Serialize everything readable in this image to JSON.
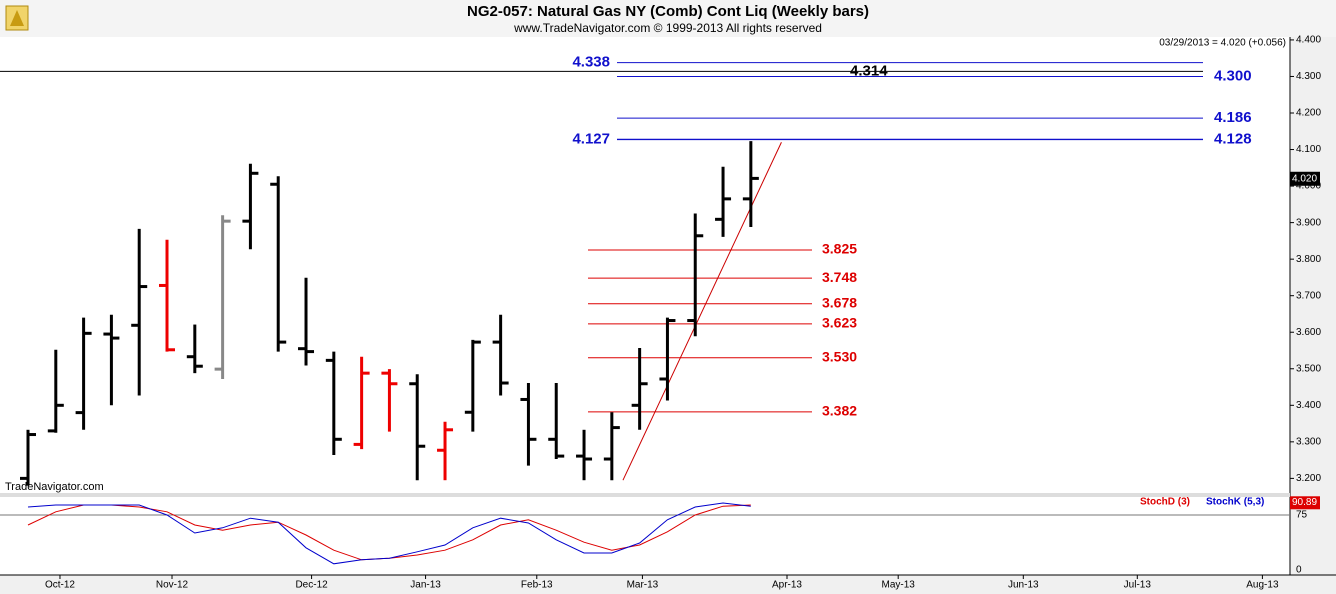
{
  "chart_data": {
    "type": "ohlc",
    "title": "NG2-057:  Natural Gas NY (Comb) Cont Liq  (Weekly bars)",
    "subtitle": "www.TradeNavigator.com © 1999-2013 All rights reserved",
    "quote": "03/29/2013 = 4.020 (+0.056)",
    "watermark": "TradeNavigator.com",
    "xlim": [
      -1,
      45.4
    ],
    "xticks": [
      {
        "value": 1.15,
        "label": "Oct-12"
      },
      {
        "value": 5.18,
        "label": "Nov-12"
      },
      {
        "value": 10.2,
        "label": "Dec-12"
      },
      {
        "value": 14.3,
        "label": "Jan-13"
      },
      {
        "value": 18.3,
        "label": "Feb-13"
      },
      {
        "value": 22.1,
        "label": "Mar-13"
      },
      {
        "value": 27.3,
        "label": "Apr-13"
      },
      {
        "value": 31.3,
        "label": "May-13"
      },
      {
        "value": 35.8,
        "label": "Jun-13"
      },
      {
        "value": 39.9,
        "label": "Jul-13"
      },
      {
        "value": 44.4,
        "label": "Aug-13"
      }
    ],
    "ylim": [
      3.16,
      4.408
    ],
    "yticks": [
      {
        "value": 3.2,
        "label": "3.200"
      },
      {
        "value": 3.3,
        "label": "3.300"
      },
      {
        "value": 3.4,
        "label": "3.400"
      },
      {
        "value": 3.5,
        "label": "3.500"
      },
      {
        "value": 3.6,
        "label": "3.600"
      },
      {
        "value": 3.7,
        "label": "3.700"
      },
      {
        "value": 3.8,
        "label": "3.800"
      },
      {
        "value": 3.9,
        "label": "3.900"
      },
      {
        "value": 4.0,
        "label": "4.000"
      },
      {
        "value": 4.1,
        "label": "4.100"
      },
      {
        "value": 4.2,
        "label": "4.200"
      },
      {
        "value": 4.3,
        "label": "4.300"
      },
      {
        "value": 4.4,
        "label": "4.400"
      }
    ],
    "open": [
      3.2,
      3.33,
      3.38,
      3.595,
      3.619,
      3.728,
      3.533,
      3.499,
      3.904,
      4.005,
      3.555,
      3.523,
      3.293,
      3.488,
      3.459,
      3.277,
      3.381,
      3.573,
      3.416,
      3.307,
      3.261,
      3.253,
      3.4,
      3.472,
      3.632,
      3.909,
      3.965
    ],
    "high": [
      3.333,
      3.552,
      3.64,
      3.648,
      3.883,
      3.853,
      3.621,
      3.92,
      4.061,
      4.027,
      3.749,
      3.547,
      3.533,
      3.499,
      3.485,
      3.355,
      3.579,
      3.648,
      3.461,
      3.461,
      3.333,
      3.381,
      3.557,
      3.64,
      3.925,
      4.053,
      4.123
    ],
    "low": [
      3.18,
      3.325,
      3.333,
      3.4,
      3.427,
      3.547,
      3.488,
      3.472,
      3.827,
      3.547,
      3.509,
      3.264,
      3.28,
      3.328,
      3.195,
      3.195,
      3.328,
      3.427,
      3.235,
      3.253,
      3.195,
      3.195,
      3.333,
      3.413,
      3.589,
      3.861,
      3.888
    ],
    "close": [
      3.32,
      3.4,
      3.597,
      3.584,
      3.725,
      3.552,
      3.507,
      3.904,
      4.035,
      3.573,
      3.547,
      3.307,
      3.488,
      3.459,
      3.288,
      3.333,
      3.573,
      3.461,
      3.307,
      3.261,
      3.253,
      3.339,
      3.459,
      3.632,
      3.864,
      3.965,
      4.021
    ],
    "colors": [
      "#000000",
      "#000000",
      "#000000",
      "#000000",
      "#000000",
      "#ee0000",
      "#000000",
      "#888888",
      "#000000",
      "#000000",
      "#000000",
      "#000000",
      "#ee0000",
      "#ee0000",
      "#000000",
      "#ee0000",
      "#000000",
      "#000000",
      "#000000",
      "#000000",
      "#000000",
      "#000000",
      "#000000",
      "#000000",
      "#000000",
      "#000000",
      "#000000"
    ],
    "last_price": 4.02,
    "last_price_label": "4.020",
    "trendline": {
      "x": [
        21.4,
        27.1
      ],
      "y": [
        3.195,
        4.12
      ],
      "color": "#cc0000"
    },
    "levels": [
      {
        "value": 4.338,
        "label": "4.338",
        "color": "#1010cc",
        "label_side": "left"
      },
      {
        "value": 4.314,
        "label": "4.314",
        "color": "#000000",
        "label_side": "middle"
      },
      {
        "value": 4.3,
        "label": "4.300",
        "color": "#1010cc",
        "label_side": "right"
      },
      {
        "value": 4.186,
        "label": "4.186",
        "color": "#1010cc",
        "label_side": "right"
      },
      {
        "value": 4.128,
        "label": "4.128",
        "color": "#1010cc",
        "label_side": "right"
      },
      {
        "value": 4.127,
        "label": "4.127",
        "color": "#1010cc",
        "label_side": "left"
      },
      {
        "value": 3.825,
        "label": "3.825",
        "color": "#dd0000",
        "label_side": "right"
      },
      {
        "value": 3.748,
        "label": "3.748",
        "color": "#dd0000",
        "label_side": "right"
      },
      {
        "value": 3.678,
        "label": "3.678",
        "color": "#dd0000",
        "label_side": "right"
      },
      {
        "value": 3.623,
        "label": "3.623",
        "color": "#dd0000",
        "label_side": "right"
      },
      {
        "value": 3.53,
        "label": "3.530",
        "color": "#dd0000",
        "label_side": "right"
      },
      {
        "value": 3.382,
        "label": "3.382",
        "color": "#dd0000",
        "label_side": "right"
      }
    ],
    "stoch": {
      "ylim": [
        0,
        100
      ],
      "yticks": [
        0,
        75
      ],
      "series": [
        {
          "name": "StochD (3)",
          "color": "#dd0000",
          "values": [
            62.5,
            79,
            87.5,
            87.5,
            85,
            79,
            62.5,
            56,
            62.5,
            66,
            50,
            31,
            19,
            21,
            25,
            31,
            44,
            62.5,
            69,
            56,
            41,
            31,
            37.5,
            54,
            75,
            86,
            87.5
          ]
        },
        {
          "name": "StochK (5,3)",
          "color": "#0000cc",
          "values": [
            85,
            87.5,
            87.5,
            87.5,
            87.5,
            75,
            52.5,
            59,
            71,
            66,
            34,
            14,
            19,
            21,
            29,
            37.5,
            59,
            71,
            65,
            44,
            27.5,
            27.5,
            40,
            69,
            85,
            90,
            86
          ]
        }
      ],
      "last_value": 90.89
    }
  }
}
